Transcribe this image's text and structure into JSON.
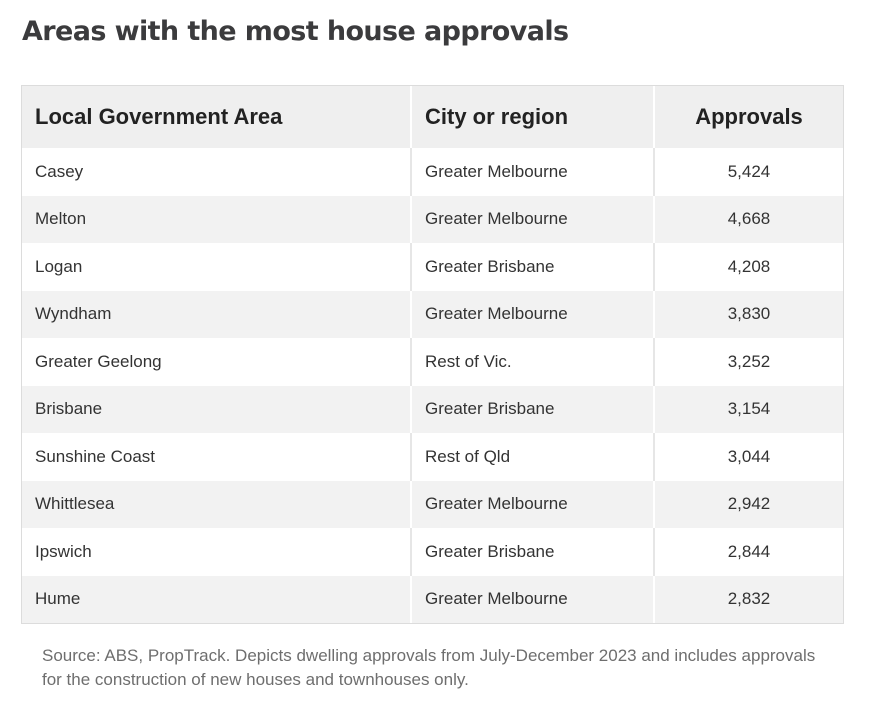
{
  "title": "Areas with the most house approvals",
  "table": {
    "headers": [
      "Local Government Area",
      "City or region",
      "Approvals"
    ],
    "rows": [
      [
        "Casey",
        "Greater Melbourne",
        "5,424"
      ],
      [
        "Melton",
        "Greater Melbourne",
        "4,668"
      ],
      [
        "Logan",
        "Greater Brisbane",
        "4,208"
      ],
      [
        "Wyndham",
        "Greater Melbourne",
        "3,830"
      ],
      [
        "Greater Geelong",
        "Rest of Vic.",
        "3,252"
      ],
      [
        "Brisbane",
        "Greater Brisbane",
        "3,154"
      ],
      [
        "Sunshine Coast",
        "Rest of Qld",
        "3,044"
      ],
      [
        "Whittlesea",
        "Greater Melbourne",
        "2,942"
      ],
      [
        "Ipswich",
        "Greater Brisbane",
        "2,844"
      ],
      [
        "Hume",
        "Greater Melbourne",
        "2,832"
      ]
    ]
  },
  "source": "Source: ABS, PropTrack. Depicts dwelling approvals from July-December 2023 and includes approvals for the construction of new houses and townhouses only.",
  "colors": {
    "header_bg": "#efefef",
    "stripe_bg": "#f2f2f2",
    "title_text": "#3b3b3d",
    "source_text": "#6e6e6e"
  }
}
